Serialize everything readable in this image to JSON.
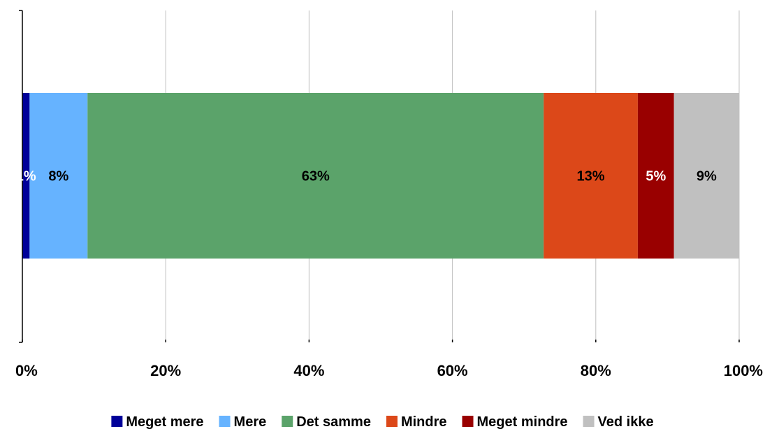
{
  "chart_data": {
    "type": "bar",
    "orientation": "horizontal",
    "stacked": true,
    "xlim": [
      0,
      100
    ],
    "x_ticks": [
      "0%",
      "20%",
      "40%",
      "60%",
      "80%",
      "100%"
    ],
    "grid": true,
    "legend_position": "bottom",
    "series": [
      {
        "name": "Meget mere",
        "value": 1,
        "label": "1%",
        "color": "#000099",
        "label_color": "#ffffff"
      },
      {
        "name": "Mere",
        "value": 8,
        "label": "8%",
        "color": "#66b3ff",
        "label_color": "#000000"
      },
      {
        "name": "Det samme",
        "value": 63,
        "label": "63%",
        "color": "#5ba36a",
        "label_color": "#000000"
      },
      {
        "name": "Mindre",
        "value": 13,
        "label": "13%",
        "color": "#dc4819",
        "label_color": "#000000"
      },
      {
        "name": "Meget mindre",
        "value": 5,
        "label": "5%",
        "color": "#990000",
        "label_color": "#ffffff"
      },
      {
        "name": "Ved ikke",
        "value": 9,
        "label": "9%",
        "color": "#c0c0c0",
        "label_color": "#000000"
      }
    ]
  }
}
